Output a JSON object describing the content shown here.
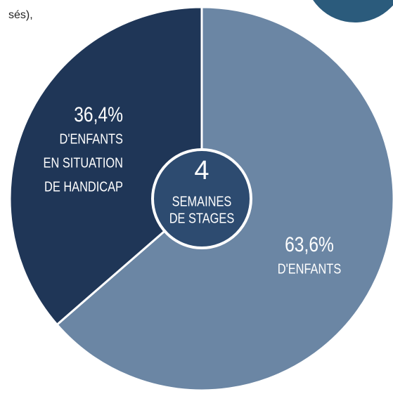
{
  "chart_data": {
    "type": "pie",
    "fragment": "sés),",
    "categories": [
      [
        "D'ENFANTS"
      ],
      [
        "D'ENFANTS",
        "EN SITUATION",
        "DE HANDICAP"
      ]
    ],
    "values": [
      63.6,
      36.4
    ],
    "value_labels": [
      "63,6%",
      "36,4%"
    ],
    "colors": [
      "#6b86a4",
      "#1f3657"
    ],
    "center_number": 4,
    "center_label": [
      "SEMAINES",
      "DE STAGES"
    ],
    "center_color": "#2d4b70"
  }
}
